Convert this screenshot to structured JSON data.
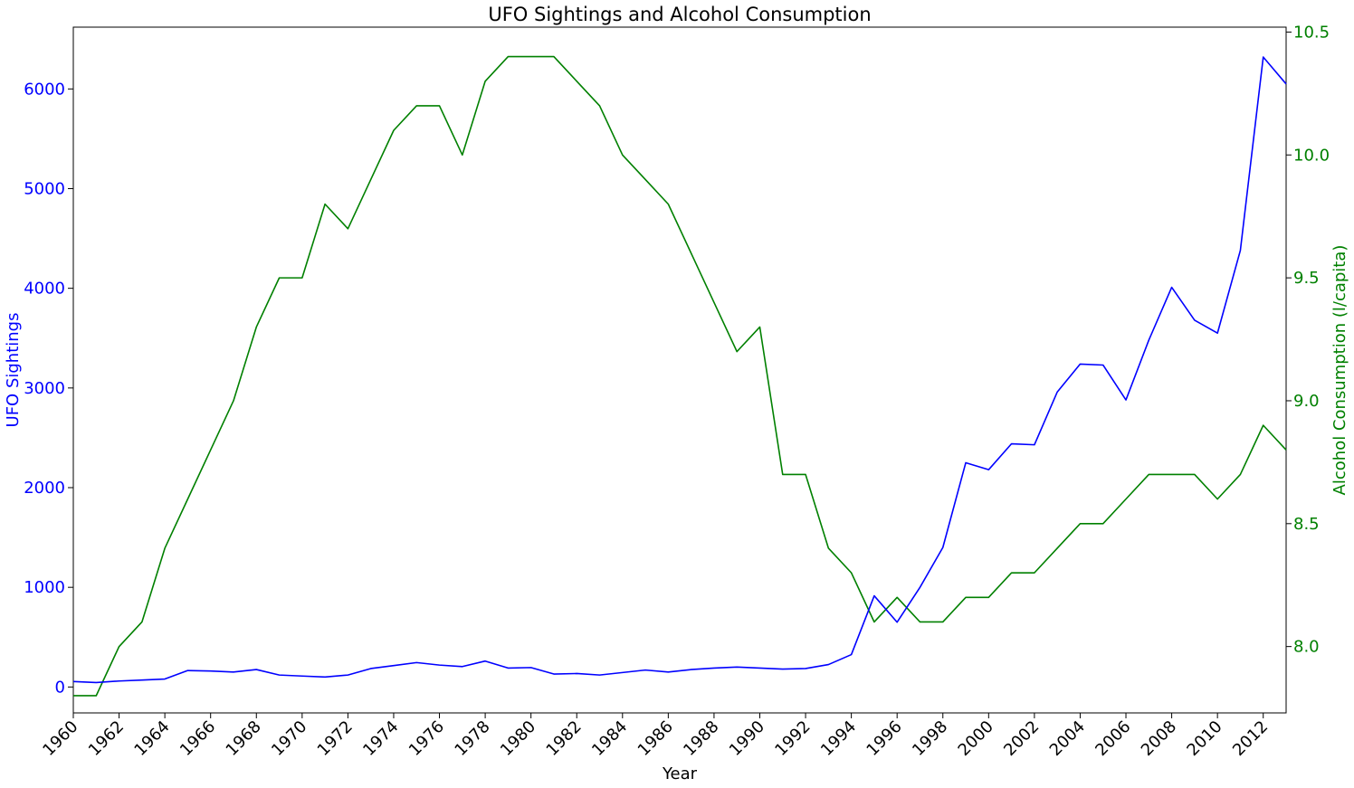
{
  "chart_data": {
    "type": "line",
    "title": "UFO Sightings and Alcohol Consumption",
    "xlabel": "Year",
    "ylabel_left": "UFO Sightings",
    "ylabel_right": "Alcohol Consumption (l/capita)",
    "xlim": [
      1960,
      2013
    ],
    "ylim_left": [
      -260,
      6620
    ],
    "ylim_right": [
      7.73,
      10.52
    ],
    "x_ticks": [
      "1960",
      "1962",
      "1964",
      "1966",
      "1968",
      "1970",
      "1972",
      "1974",
      "1976",
      "1978",
      "1980",
      "1982",
      "1984",
      "1986",
      "1988",
      "1990",
      "1992",
      "1994",
      "1996",
      "1998",
      "2000",
      "2002",
      "2004",
      "2006",
      "2008",
      "2010",
      "2012"
    ],
    "y_ticks_left": [
      "0",
      "1000",
      "2000",
      "3000",
      "4000",
      "5000",
      "6000"
    ],
    "y_ticks_right": [
      "8.0",
      "8.5",
      "9.0",
      "9.5",
      "10.0",
      "10.5"
    ],
    "grid": false,
    "x": [
      1960,
      1961,
      1962,
      1963,
      1964,
      1965,
      1966,
      1967,
      1968,
      1969,
      1970,
      1971,
      1972,
      1973,
      1974,
      1975,
      1976,
      1977,
      1978,
      1979,
      1980,
      1981,
      1982,
      1983,
      1984,
      1985,
      1986,
      1987,
      1988,
      1989,
      1990,
      1991,
      1992,
      1993,
      1994,
      1995,
      1996,
      1997,
      1998,
      1999,
      2000,
      2001,
      2002,
      2003,
      2004,
      2005,
      2006,
      2007,
      2008,
      2009,
      2010,
      2011,
      2012,
      2013
    ],
    "series": [
      {
        "axis": "left",
        "color": "#0000ff",
        "values": [
          55,
          45,
          60,
          70,
          80,
          165,
          160,
          150,
          175,
          120,
          110,
          100,
          120,
          185,
          215,
          245,
          220,
          205,
          260,
          190,
          195,
          130,
          135,
          120,
          145,
          170,
          150,
          175,
          190,
          200,
          190,
          180,
          185,
          225,
          325,
          915,
          650,
          1000,
          1400,
          2250,
          2180,
          2440,
          2430,
          2960,
          3240,
          3230,
          2880,
          3480,
          4010,
          3680,
          3550,
          4380,
          6320,
          6050
        ]
      },
      {
        "axis": "right",
        "color": "#008000",
        "values": [
          7.8,
          7.8,
          8.0,
          8.1,
          8.4,
          8.6,
          8.8,
          9.0,
          9.3,
          9.5,
          9.5,
          9.8,
          9.7,
          9.9,
          10.1,
          10.2,
          10.2,
          10.0,
          10.3,
          10.4,
          10.4,
          10.4,
          10.3,
          10.2,
          10.0,
          9.9,
          9.8,
          9.6,
          9.4,
          9.2,
          9.3,
          8.7,
          8.7,
          8.4,
          8.3,
          8.1,
          8.2,
          8.1,
          8.1,
          8.2,
          8.2,
          8.3,
          8.3,
          8.4,
          8.5,
          8.5,
          8.6,
          8.7,
          8.7,
          8.7,
          8.6,
          8.7,
          8.9,
          8.8
        ]
      }
    ]
  },
  "colors": {
    "left_axis": "#0000ff",
    "right_axis": "#008000",
    "frame": "#000000"
  }
}
